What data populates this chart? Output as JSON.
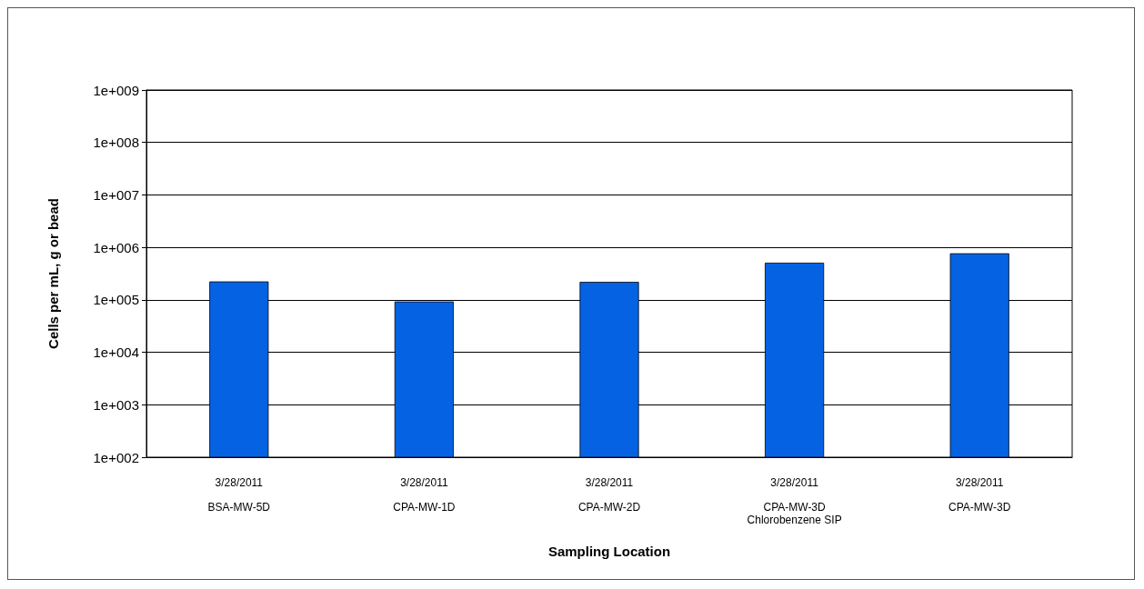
{
  "chart_data": {
    "type": "bar",
    "xlabel": "Sampling Location",
    "ylabel": "Cells per mL, g or bead",
    "categories": [
      "3/28/2011\nBSA-MW-5D",
      "3/28/2011\nCPA-MW-1D",
      "3/28/2011\nCPA-MW-2D",
      "3/28/2011\nCPA-MW-3D\nChlorobenzene SIP",
      "3/28/2011\nCPA-MW-3D"
    ],
    "values": [
      224000,
      93000,
      220000,
      510000,
      770000
    ],
    "color": "#0563e3",
    "log": "y",
    "ylim": [
      100,
      1000000000
    ],
    "yticks": [
      {
        "value": 100,
        "label": "1e+002"
      },
      {
        "value": 1000,
        "label": "1e+003"
      },
      {
        "value": 10000,
        "label": "1e+004"
      },
      {
        "value": 100000,
        "label": "1e+005"
      },
      {
        "value": 1000000,
        "label": "1e+006"
      },
      {
        "value": 10000000,
        "label": "1e+007"
      },
      {
        "value": 100000000,
        "label": "1e+008"
      },
      {
        "value": 1000000000,
        "label": "1e+009"
      }
    ],
    "grid": "y"
  }
}
